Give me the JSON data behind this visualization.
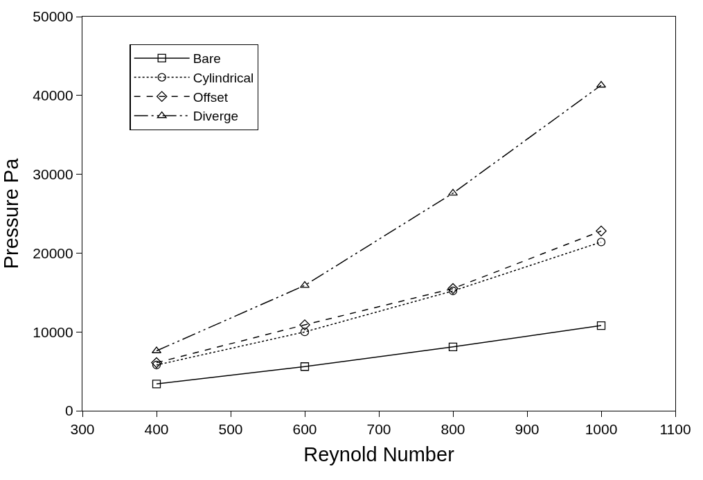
{
  "chart_data": {
    "type": "line",
    "xlabel": "Reynold Number",
    "ylabel": "Pressure Pa",
    "x": [
      400,
      600,
      800,
      1000
    ],
    "series": [
      {
        "name": "Bare",
        "color": "#000000",
        "marker": "square",
        "line_style": "solid",
        "values": [
          3400,
          5600,
          8100,
          10800
        ]
      },
      {
        "name": "Cylindrical",
        "color": "#000000",
        "marker": "circle",
        "line_style": "dotted",
        "values": [
          5800,
          10000,
          15200,
          21400
        ]
      },
      {
        "name": "Offset",
        "color": "#000000",
        "marker": "diamond",
        "line_style": "dashed",
        "values": [
          6100,
          10900,
          15500,
          22800
        ]
      },
      {
        "name": "Diverge",
        "color": "#000000",
        "marker": "triangle",
        "line_style": "dashdot",
        "values": [
          7600,
          15900,
          27600,
          41300
        ]
      }
    ],
    "xlim": [
      300,
      1100
    ],
    "xticks": [
      300,
      400,
      500,
      600,
      700,
      800,
      900,
      1000,
      1100
    ],
    "ylim": [
      0,
      50000
    ],
    "yticks": [
      0,
      10000,
      20000,
      30000,
      40000,
      50000
    ],
    "legend": "top left"
  }
}
